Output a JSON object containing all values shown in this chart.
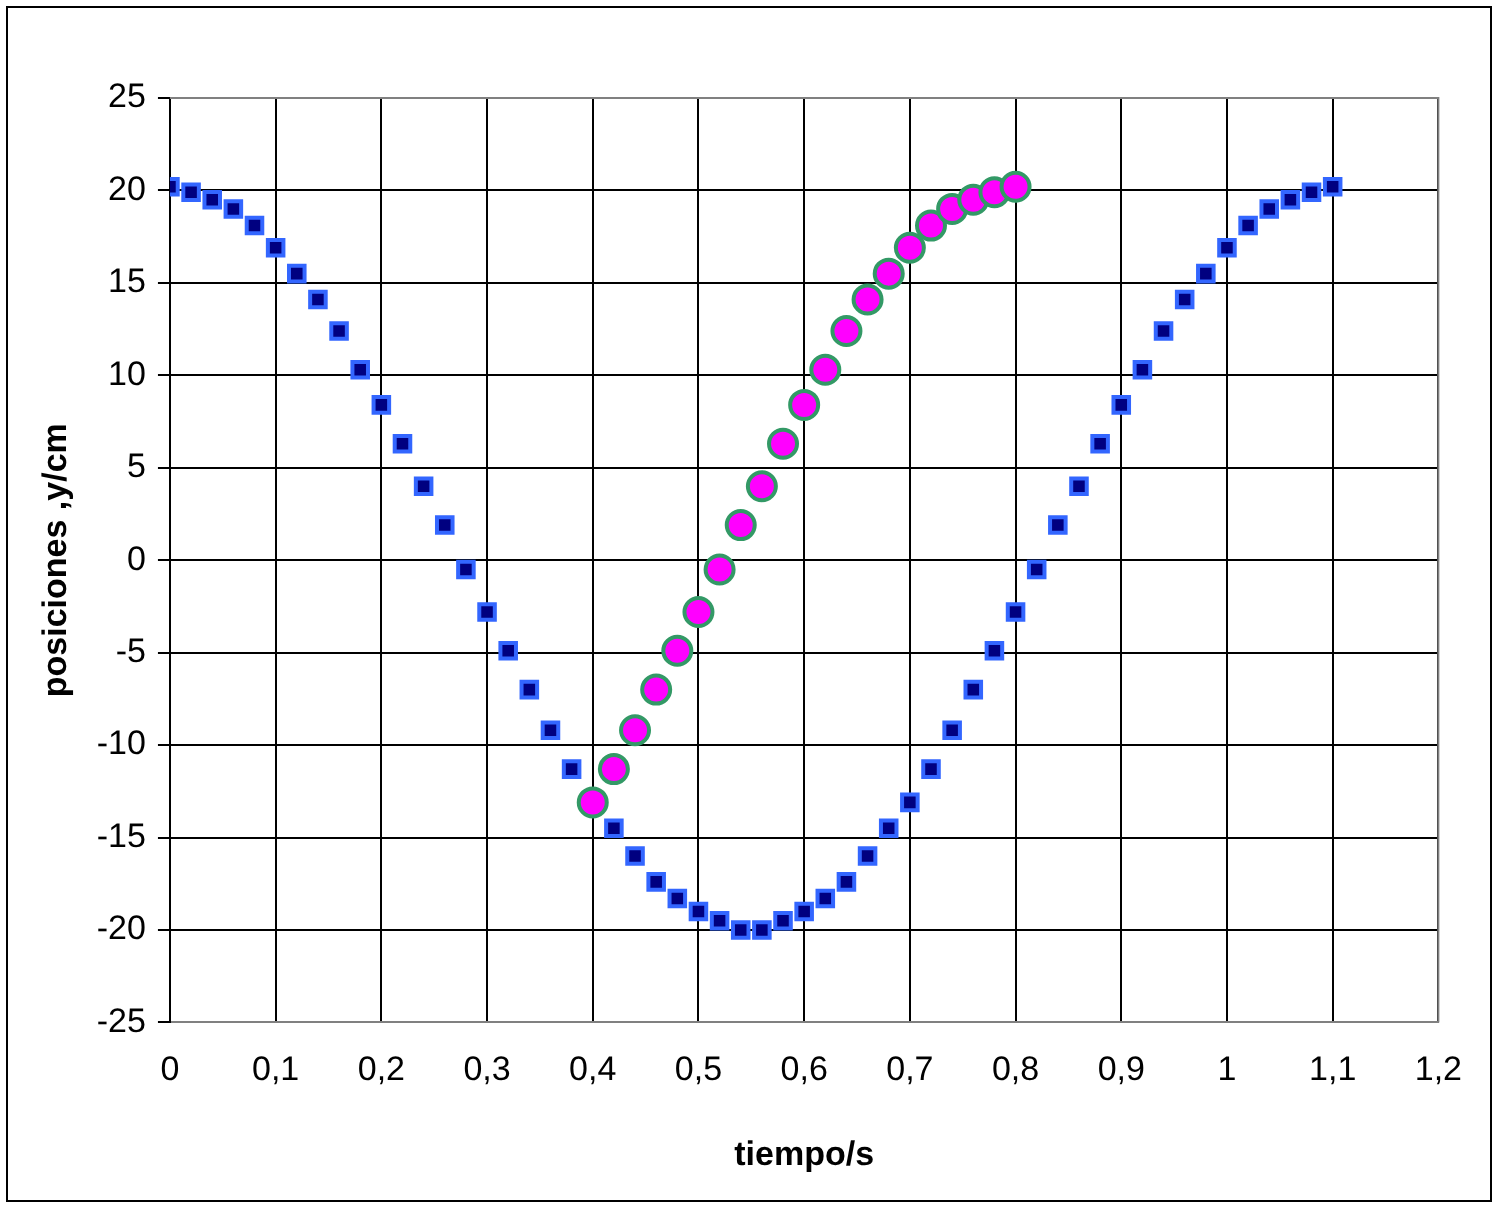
{
  "chart_data": {
    "type": "scatter",
    "xlabel": "tiempo/s",
    "ylabel": "posiciones ,y/cm",
    "xlim": [
      0,
      1.2
    ],
    "xticks": [
      0,
      {
        "value": 0.1,
        "label": "0,1"
      },
      {
        "value": 0.2,
        "label": "0,2"
      },
      {
        "value": 0.3,
        "label": "0,3"
      },
      {
        "value": 0.4,
        "label": "0,4"
      },
      {
        "value": 0.5,
        "label": "0,5"
      },
      {
        "value": 0.6,
        "label": "0,6"
      },
      {
        "value": 0.7,
        "label": "0,7"
      },
      {
        "value": 0.8,
        "label": "0,8"
      },
      {
        "value": 0.9,
        "label": "0,9"
      },
      1,
      {
        "value": 1.1,
        "label": "1,1"
      },
      {
        "value": 1.2,
        "label": "1,2"
      }
    ],
    "ylim": [
      -25,
      25
    ],
    "yticks": [
      -25,
      -20,
      -15,
      -10,
      -5,
      0,
      5,
      10,
      15,
      20,
      25
    ],
    "grid": true,
    "legend": false,
    "series": [
      {
        "color": "#000080",
        "marker": "square",
        "x": [
          0,
          0.02,
          0.04,
          0.06,
          0.08,
          0.1,
          0.12,
          0.14,
          0.16,
          0.18,
          0.2,
          0.22,
          0.24,
          0.26,
          0.28,
          0.3,
          0.32,
          0.34,
          0.36,
          0.38,
          0.4,
          0.42,
          0.44,
          0.46,
          0.48,
          0.5,
          0.52,
          0.54,
          0.56,
          0.58,
          0.6,
          0.62,
          0.64,
          0.66,
          0.68,
          0.7,
          0.72,
          0.74,
          0.76,
          0.78,
          0.8,
          0.82,
          0.84,
          0.86,
          0.88,
          0.9,
          0.92,
          0.94,
          0.96,
          0.98,
          1,
          1.02,
          1.04,
          1.06,
          1.08,
          1.1
        ],
        "values": [
          20.2,
          19.9,
          19.5,
          19.0,
          18.1,
          16.9,
          15.5,
          14.1,
          12.4,
          10.3,
          8.4,
          6.3,
          4.0,
          1.9,
          -0.5,
          -2.8,
          -4.9,
          -7.0,
          -9.2,
          -11.3,
          null,
          -14.5,
          -16.0,
          -17.4,
          -18.3,
          -19.0,
          -19.5,
          -20.0,
          -20.0,
          -19.5,
          -19.0,
          -18.3,
          -17.4,
          -16.0,
          -14.5,
          -13.1,
          -11.3,
          -9.2,
          -7.0,
          -4.9,
          -2.8,
          -0.5,
          1.9,
          4.0,
          6.3,
          8.4,
          10.3,
          12.4,
          14.1,
          15.5,
          16.9,
          18.1,
          19.0,
          19.5,
          19.9,
          20.2
        ]
      },
      {
        "color": "#ff00ff",
        "marker": "circle",
        "x": [
          0.4,
          0.42,
          0.44,
          0.46,
          0.48,
          0.5,
          0.52,
          0.54,
          0.56,
          0.58,
          0.6,
          0.62,
          0.64,
          0.66,
          0.68,
          0.7,
          0.72,
          0.74,
          0.76,
          0.78,
          0.8
        ],
        "values": [
          -13.1,
          -11.3,
          -9.2,
          -7.0,
          -4.9,
          -2.8,
          -0.5,
          1.9,
          4.0,
          6.3,
          8.4,
          10.3,
          12.4,
          14.1,
          15.5,
          16.9,
          18.1,
          19.0,
          19.5,
          19.9,
          20.2
        ]
      }
    ]
  }
}
